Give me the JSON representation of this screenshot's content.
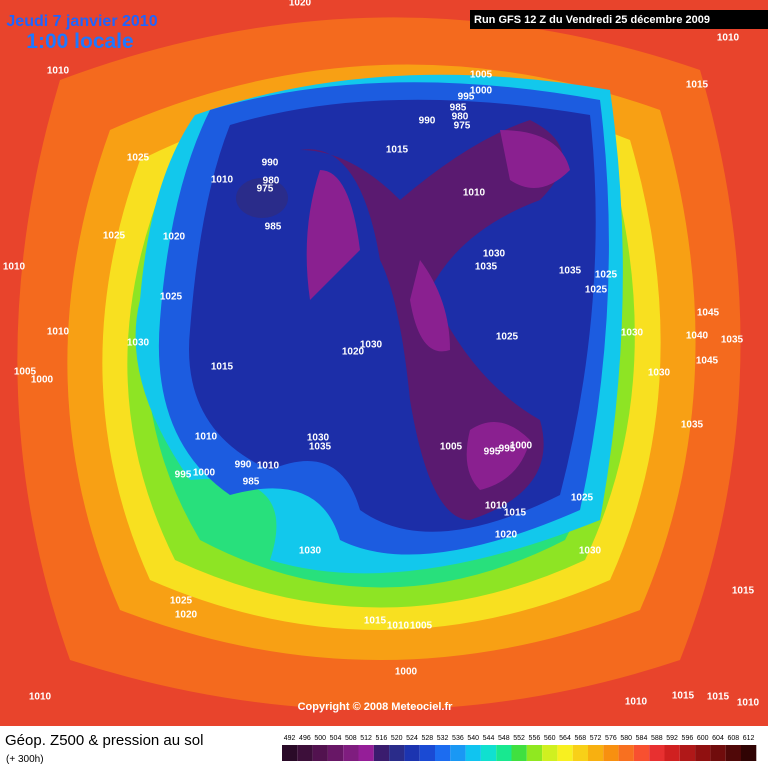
{
  "header": {
    "date": "Jeudi 7 janvier 2010",
    "time": "1:00 locale",
    "run": "Run GFS 12 Z du Vendredi 25 décembre 2009"
  },
  "map": {
    "pressure_labels": [
      "1020",
      "1010",
      "1010",
      "1005",
      "1000",
      "1015",
      "995",
      "985",
      "980",
      "975",
      "990",
      "1025",
      "1015",
      "990",
      "980",
      "975",
      "1010",
      "1010",
      "985",
      "1025",
      "1020",
      "1010",
      "1030",
      "1035",
      "1035",
      "1025",
      "1025",
      "1025",
      "1045",
      "1030",
      "1010",
      "1030",
      "1020",
      "1030",
      "1025",
      "1040",
      "1035",
      "1045",
      "1015",
      "1005",
      "1000",
      "1030",
      "1035",
      "1010",
      "1030",
      "1035",
      "1005",
      "1000",
      "995",
      "995",
      "990",
      "1010",
      "995",
      "1000",
      "985",
      "1025",
      "1010",
      "1015",
      "1020",
      "1030",
      "1030",
      "1025",
      "1015",
      "1020",
      "1015",
      "1010",
      "1005",
      "1000",
      "1010",
      "1010",
      "1015",
      "1015",
      "1010"
    ],
    "copyright": "Copyright © 2008 Meteociel.fr"
  },
  "footer": {
    "title": "Géop. Z500 & pression au sol",
    "subtitle": "(+ 300h)",
    "scale": [
      492,
      496,
      500,
      504,
      508,
      512,
      516,
      520,
      524,
      528,
      532,
      536,
      540,
      544,
      548,
      552,
      556,
      560,
      564,
      568,
      572,
      576,
      580,
      584,
      588,
      592,
      596,
      600,
      604,
      608,
      612
    ]
  }
}
